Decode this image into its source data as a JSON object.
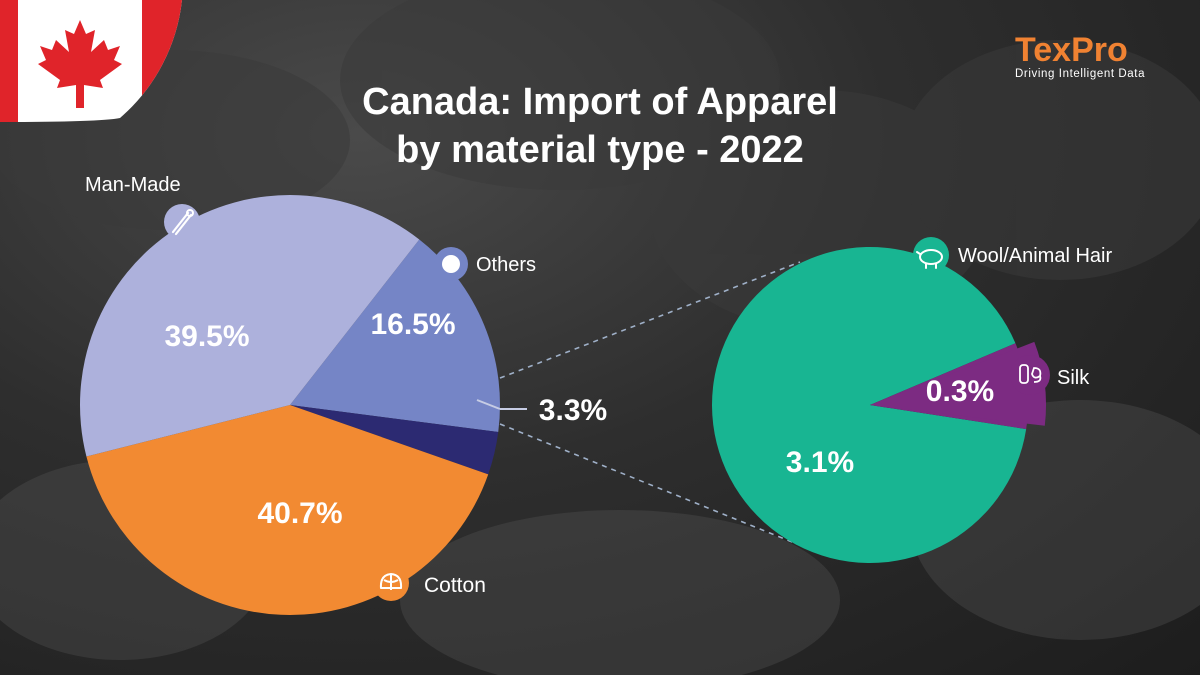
{
  "title_line1": "Canada: Import of Apparel",
  "title_line2": "by material type - 2022",
  "logo": {
    "word": "TexPro",
    "tagline": "Driving Intelligent Data"
  },
  "colors": {
    "man_made": "#adb1dc",
    "others": "#7585c6",
    "gap": "#2c2a72",
    "cotton": "#f28a32",
    "wool": "#18b592",
    "silk": "#7c2b82"
  },
  "icons": {
    "man_made": "safety-pin-icon",
    "others": "dot-icon",
    "cotton": "cotton-flower-icon",
    "wool": "sheep-icon",
    "silk": "silkworm-icon"
  },
  "chart_data": [
    {
      "type": "pie",
      "title": "Canada: Import of Apparel by material type - 2022",
      "slices": [
        {
          "name": "Others",
          "value": 16.5,
          "label": "16.5%"
        },
        {
          "name": "",
          "value": 3.3,
          "label": "3.3%"
        },
        {
          "name": "Cotton",
          "value": 40.7,
          "label": "40.7%"
        },
        {
          "name": "Man-Made",
          "value": 39.5,
          "label": "39.5%"
        }
      ]
    },
    {
      "type": "pie",
      "slices": [
        {
          "name": "Wool/Animal Hair",
          "value": 3.1,
          "label": "3.1%"
        },
        {
          "name": "Silk",
          "value": 0.3,
          "label": "0.3%"
        }
      ]
    }
  ]
}
